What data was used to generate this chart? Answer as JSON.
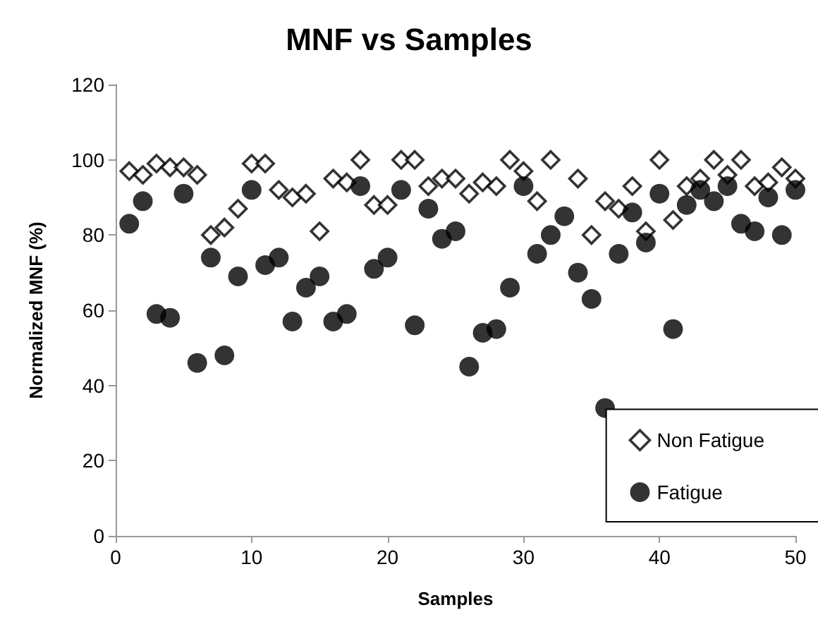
{
  "chart_data": {
    "type": "scatter",
    "title": "MNF vs Samples",
    "xlabel": "Samples",
    "ylabel": "Normalized MNF (%)",
    "x": [
      1,
      2,
      3,
      4,
      5,
      6,
      7,
      8,
      9,
      10,
      11,
      12,
      13,
      14,
      15,
      16,
      17,
      18,
      19,
      20,
      21,
      22,
      23,
      24,
      25,
      26,
      27,
      28,
      29,
      30,
      31,
      32,
      33,
      34,
      35,
      36,
      37,
      38,
      39,
      40,
      41,
      42,
      43,
      44,
      45,
      46,
      47,
      48,
      49,
      50
    ],
    "series": [
      {
        "name": "Non Fatigue",
        "color": "#000000",
        "marker": "diamond",
        "values": [
          97,
          96,
          99,
          98,
          98,
          96,
          80,
          82,
          87,
          99,
          99,
          92,
          90,
          91,
          81,
          95,
          94,
          100,
          88,
          88,
          100,
          100,
          93,
          95,
          95,
          91,
          94,
          93,
          100,
          97,
          89,
          100,
          null,
          95,
          80,
          89,
          87,
          93,
          81,
          100,
          84,
          93,
          95,
          100,
          96,
          100,
          93,
          94,
          98,
          95
        ]
      },
      {
        "name": "Fatigue",
        "color": "#000000",
        "marker": "circle",
        "values": [
          83,
          89,
          59,
          58,
          91,
          46,
          74,
          48,
          69,
          92,
          72,
          74,
          57,
          66,
          69,
          57,
          59,
          93,
          71,
          74,
          92,
          56,
          87,
          79,
          81,
          45,
          54,
          55,
          66,
          93,
          75,
          80,
          85,
          70,
          63,
          34,
          75,
          86,
          78,
          91,
          55,
          88,
          92,
          89,
          93,
          83,
          81,
          90,
          80,
          92
        ]
      }
    ],
    "xlim": [
      0,
      50
    ],
    "xticks": [
      0,
      10,
      20,
      30,
      40,
      50
    ],
    "ylim": [
      0,
      120
    ],
    "yticks": [
      0,
      20,
      40,
      60,
      80,
      100,
      120
    ],
    "grid": false,
    "legend": "bottom right"
  }
}
